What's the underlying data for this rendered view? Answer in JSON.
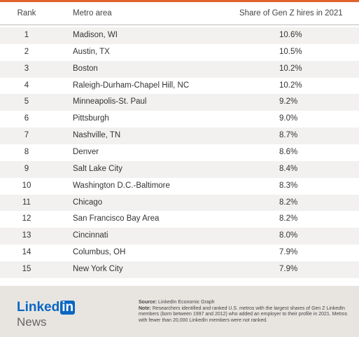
{
  "table": {
    "header": [
      "Rank",
      "Metro area",
      "Share of Gen Z hires in 2021"
    ],
    "rows": [
      [
        "1",
        "Madison, WI",
        "10.6%"
      ],
      [
        "2",
        "Austin, TX",
        "10.5%"
      ],
      [
        "3",
        "Boston",
        "10.2%"
      ],
      [
        "4",
        "Raleigh-Durham-Chapel Hill, NC",
        "10.2%"
      ],
      [
        "5",
        "Minneapolis-St. Paul",
        "9.2%"
      ],
      [
        "6",
        "Pittsburgh",
        "9.0%"
      ],
      [
        "7",
        "Nashville, TN",
        "8.7%"
      ],
      [
        "8",
        "Denver",
        "8.6%"
      ],
      [
        "9",
        "Salt Lake City",
        "8.4%"
      ],
      [
        "10",
        "Washington D.C.-Baltimore",
        "8.3%"
      ],
      [
        "11",
        "Chicago",
        "8.2%"
      ],
      [
        "12",
        "San Francisco Bay Area",
        "8.2%"
      ],
      [
        "13",
        "Cincinnati",
        "8.0%"
      ],
      [
        "14",
        "Columbus, OH",
        "7.9%"
      ],
      [
        "15",
        "New York City",
        "7.9%"
      ]
    ]
  },
  "footer": {
    "logo": {
      "word": "Linked",
      "badge": "in",
      "sub": "News"
    },
    "source": {
      "label": "Source:",
      "text": "LinkedIn Economic Graph"
    },
    "note": {
      "label": "Note:",
      "text": "Researchers identified and ranked U.S. metros with the largest shares of Gen Z LinkedIn members (born between 1997 and 2012) who added an employer to their profile in 2021. Metros with fewer than 20,000 LinkedIn members were not ranked."
    }
  }
}
